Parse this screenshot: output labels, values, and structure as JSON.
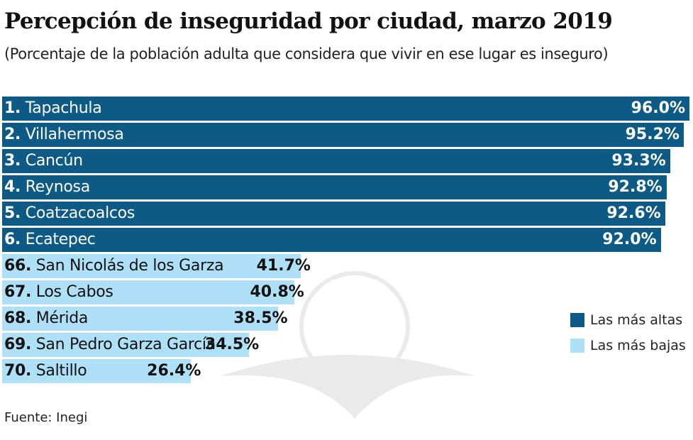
{
  "chart_data": {
    "type": "bar",
    "orientation": "horizontal",
    "title": "Percepción de inseguridad por ciudad, marzo 2019",
    "subtitle": "(Porcentaje de la población adulta que considera que vivir en ese lugar es inseguro)",
    "categories": [
      "1. Tapachula",
      "2. Villahermosa",
      "3. Cancún",
      "4. Reynosa",
      "5. Coatzacoalcos",
      "6. Ecatepec",
      "66. San Nicolás de los Garza",
      "67. Los Cabos",
      "68. Mérida",
      "69. San Pedro Garza García",
      "70. Saltillo"
    ],
    "ranks": [
      "1.",
      "2.",
      "3.",
      "4.",
      "5.",
      "6.",
      "66.",
      "67.",
      "68.",
      "69.",
      "70."
    ],
    "names": [
      "Tapachula",
      "Villahermosa",
      "Cancún",
      "Reynosa",
      "Coatzacoalcos",
      "Ecatepec",
      "San Nicolás de los Garza",
      "Los Cabos",
      "Mérida",
      "San Pedro Garza García",
      "Saltillo"
    ],
    "values": [
      96.0,
      95.2,
      93.3,
      92.8,
      92.6,
      92.0,
      41.7,
      40.8,
      38.5,
      34.5,
      26.4
    ],
    "value_labels": [
      "96.0%",
      "95.2%",
      "93.3%",
      "92.8%",
      "92.6%",
      "92.0%",
      "41.7%",
      "40.8%",
      "38.5%",
      "34.5%",
      "26.4%"
    ],
    "groups": [
      "high",
      "high",
      "high",
      "high",
      "high",
      "high",
      "low",
      "low",
      "low",
      "low",
      "low"
    ],
    "xlim": [
      0,
      96
    ],
    "grid": false,
    "legend": {
      "placement": "right",
      "entries": [
        {
          "key": "high",
          "label": "Las más altas",
          "color": "#0d5a86"
        },
        {
          "key": "low",
          "label": "Las más bajas",
          "color": "#aee0f8"
        }
      ]
    },
    "source": "Fuente: Inegi"
  }
}
